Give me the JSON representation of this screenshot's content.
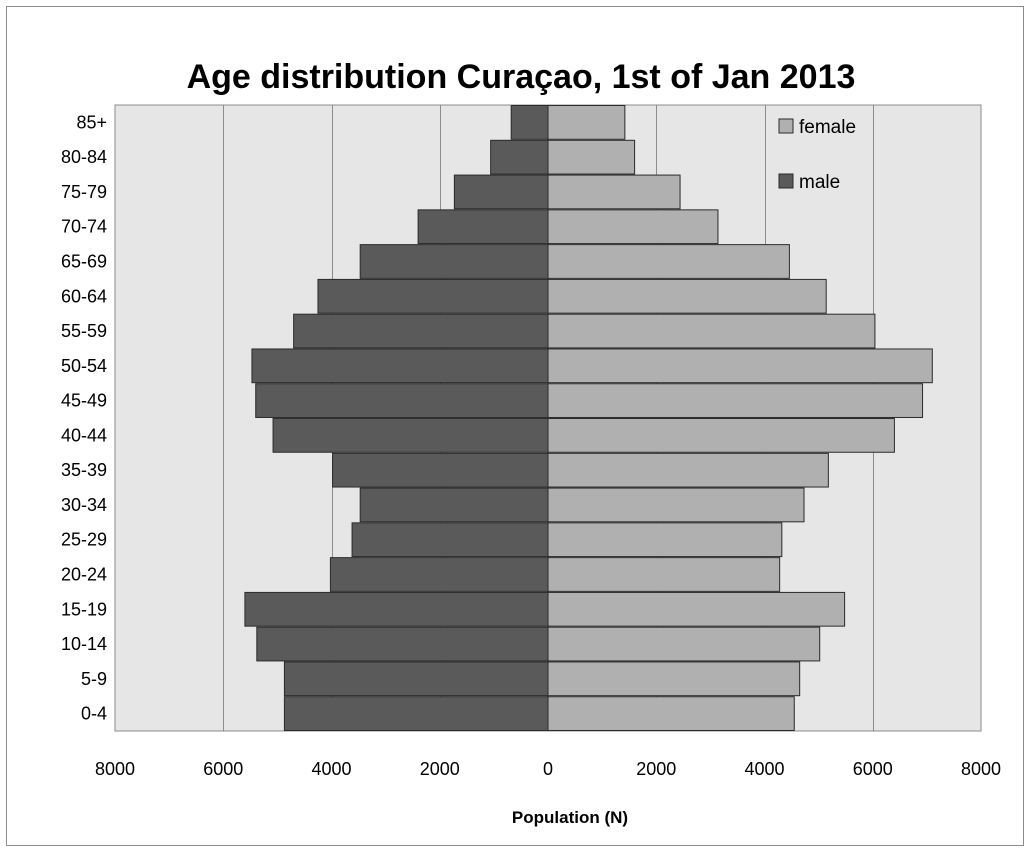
{
  "chart_data": {
    "type": "bar",
    "orientation": "horizontal",
    "title": "Age distribution Curaçao, 1st of Jan 2013",
    "xlabel": "Population (N)",
    "ylabel": "",
    "xlim": [
      -8000,
      8000
    ],
    "x_ticks": [
      -8000,
      -6000,
      -4000,
      -2000,
      0,
      2000,
      4000,
      6000,
      8000
    ],
    "x_tick_labels": [
      "8000",
      "6000",
      "4000",
      "2000",
      "0",
      "2000",
      "4000",
      "6000",
      "8000"
    ],
    "grid": true,
    "legend_position": "top-right",
    "categories": [
      "0-4",
      "5-9",
      "10-14",
      "15-19",
      "20-24",
      "25-29",
      "30-34",
      "35-39",
      "40-44",
      "45-49",
      "50-54",
      "55-59",
      "60-64",
      "65-69",
      "70-74",
      "75-79",
      "80-84",
      "85+"
    ],
    "series": [
      {
        "name": "female",
        "color": "#b0b0b0",
        "values": [
          4550,
          4650,
          5020,
          5480,
          4280,
          4320,
          4730,
          5180,
          6400,
          6920,
          7100,
          6040,
          5140,
          4460,
          3140,
          2440,
          1600,
          1420
        ]
      },
      {
        "name": "male",
        "color": "#5a5a5a",
        "values": [
          -4870,
          -4870,
          -5380,
          -5600,
          -4020,
          -3620,
          -3470,
          -3980,
          -5080,
          -5400,
          -5470,
          -4700,
          -4250,
          -3470,
          -2400,
          -1730,
          -1060,
          -680
        ]
      }
    ]
  },
  "colors": {
    "plot_background": "#e6e6e6",
    "gridline": "#8c8c8c",
    "bar_border": "#2b2b2b"
  }
}
